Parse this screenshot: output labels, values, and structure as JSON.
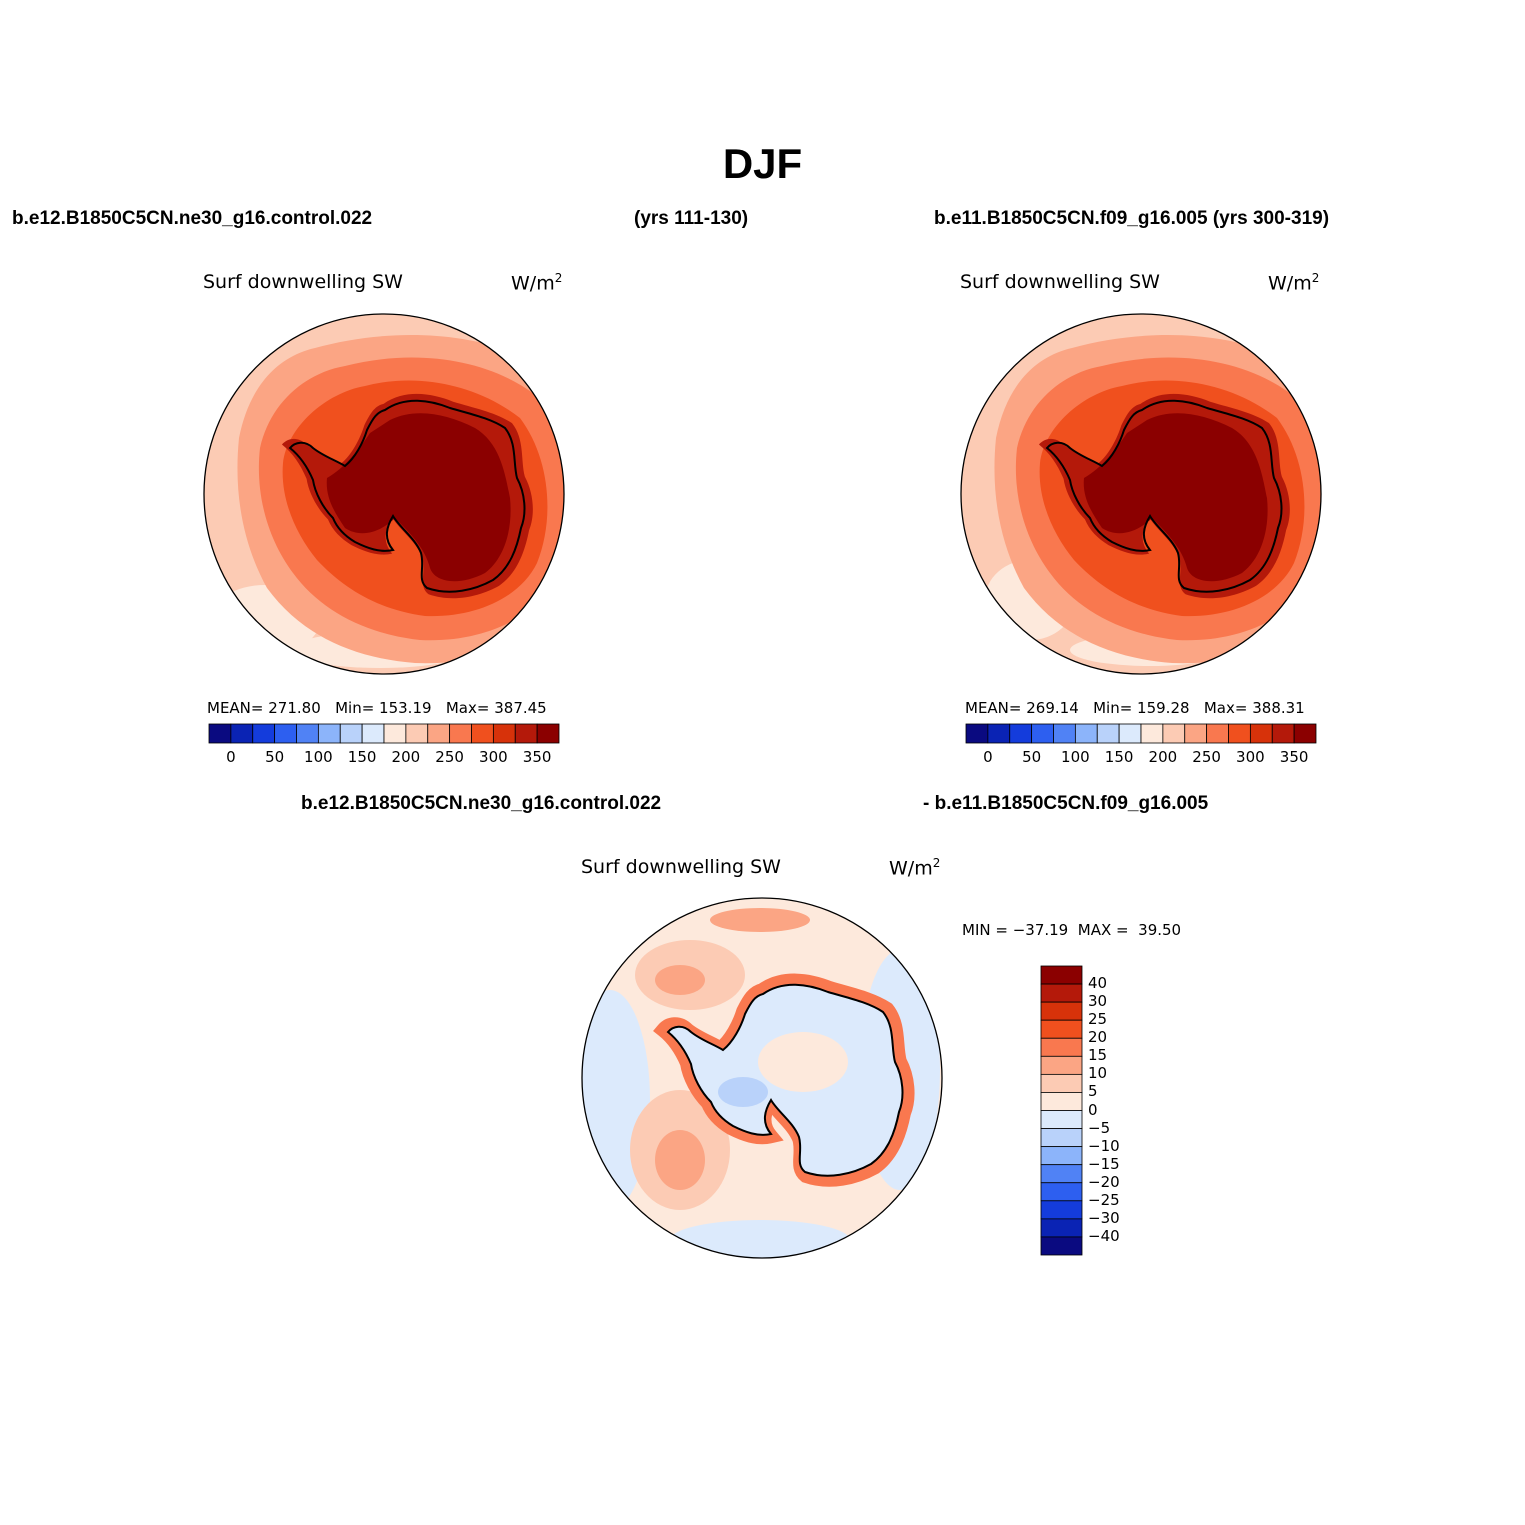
{
  "title": "DJF",
  "header": {
    "case1": "b.e12.B1850C5CN.ne30_g16.control.022",
    "years1": "(yrs 111-130)",
    "case2": "b.e11.B1850C5CN.f09_g16.005 (yrs 300-319)",
    "diff_case1": "b.e12.B1850C5CN.ne30_g16.control.022",
    "diff_case2": "- b.e11.B1850C5CN.f09_g16.005"
  },
  "panels": [
    {
      "id": "top-left",
      "variable": "Surf downwelling SW",
      "units": "W/m",
      "units_exp": "2",
      "mean_label": "MEAN=",
      "mean": "271.80",
      "min_label": "Min=",
      "min": "153.19",
      "max_label": "Max=",
      "max": "387.45"
    },
    {
      "id": "top-right",
      "variable": "Surf downwelling SW",
      "units": "W/m",
      "units_exp": "2",
      "mean_label": "MEAN=",
      "mean": "269.14",
      "min_label": "Min=",
      "min": "159.28",
      "max_label": "Max=",
      "max": "388.31"
    },
    {
      "id": "difference",
      "variable": "Surf downwelling SW",
      "units": "W/m",
      "units_exp": "2",
      "min_label": "MIN =",
      "min": "−37.19",
      "max_label": "MAX =",
      "max": "39.50"
    }
  ],
  "colorbar_abs": {
    "colors": [
      "#0a0a80",
      "#0a23b4",
      "#143cdc",
      "#2d5ff0",
      "#5082f5",
      "#8cb4fa",
      "#b9d2fa",
      "#dceafc",
      "#fde9dc",
      "#fccbb4",
      "#fba584",
      "#f9784f",
      "#f0501e",
      "#d7320a",
      "#b4190a",
      "#8b0000"
    ],
    "ticks": [
      "0",
      "50",
      "100",
      "150",
      "200",
      "250",
      "300",
      "350"
    ]
  },
  "colorbar_diff": {
    "colors": [
      "#8b0000",
      "#b4190a",
      "#d7320a",
      "#f0501e",
      "#f9784f",
      "#fba584",
      "#fccbb4",
      "#fde9dc",
      "#dceafc",
      "#b9d2fa",
      "#8cb4fa",
      "#5082f5",
      "#2d5ff0",
      "#143cdc",
      "#0a23b4",
      "#0a0a80"
    ],
    "ticks": [
      "40",
      "30",
      "25",
      "20",
      "15",
      "10",
      "5",
      "0",
      "−5",
      "−10",
      "−15",
      "−20",
      "−25",
      "−30",
      "−40"
    ]
  }
}
